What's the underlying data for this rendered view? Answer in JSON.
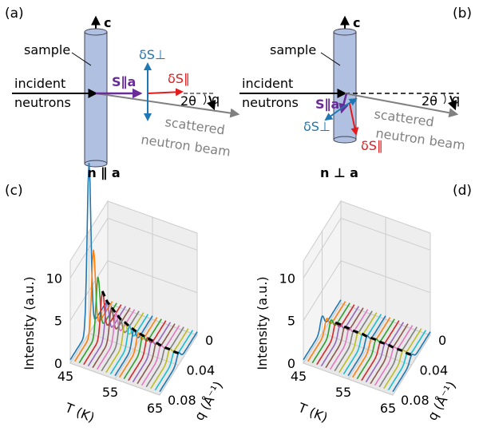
{
  "panel_labels": [
    "(a)",
    "(b)",
    "(c)",
    "(d)"
  ],
  "diagram_a": {
    "c_axis": "c",
    "sample": "sample",
    "incident": "incident",
    "neutrons": "neutrons",
    "spin": "S∥a",
    "dS_perp": "δS⊥",
    "dS_par": "δS∥",
    "two_theta": "2θ",
    "q": "q",
    "scattered": "scattered",
    "beam": "neutron beam"
  },
  "diagram_b": {
    "c_axis": "c",
    "sample": "sample",
    "incident": "incident",
    "neutrons": "neutrons",
    "spin": "S∥a",
    "dS_perp": "δS⊥",
    "dS_par": "δS∥",
    "two_theta": "2θ",
    "q": "q",
    "scattered": "scattered",
    "beam": "neutron beam"
  },
  "plots": [
    {
      "title": "n ∥ a",
      "zlabel": "Intensity (a.u.)",
      "xlabel": "T (K)",
      "ylabel": "q (Å⁻¹)",
      "zlim": [
        0,
        12
      ],
      "zticks": [
        0,
        5,
        10
      ],
      "xlim": [
        45,
        65
      ],
      "xticks": [
        45,
        55,
        65
      ],
      "ylim": [
        0,
        0.08
      ],
      "yticks": [
        0,
        0.04,
        0.08
      ],
      "temperatures": [
        45,
        46,
        47,
        48,
        49,
        50,
        51,
        52,
        53,
        54,
        55,
        56,
        57,
        58,
        59,
        60,
        61,
        62,
        63,
        64,
        65
      ],
      "peaks": [
        20,
        10,
        7,
        5.5,
        4.5,
        4,
        3.5,
        3,
        2.8,
        2.5,
        2.3,
        2.1,
        2,
        1.9,
        1.8,
        1.7,
        1.6,
        1.5,
        1.5,
        1.4,
        1.4
      ]
    },
    {
      "title": "n ⊥ a",
      "zlabel": "Intensity (a.u.)",
      "xlabel": "T (K)",
      "ylabel": "q (Å⁻¹)",
      "zlim": [
        0,
        12
      ],
      "zticks": [
        0,
        5,
        10
      ],
      "xlim": [
        45,
        65
      ],
      "xticks": [
        45,
        55,
        65
      ],
      "ylim": [
        0,
        0.08
      ],
      "yticks": [
        0,
        0.04,
        0.08
      ],
      "temperatures": [
        45,
        46,
        47,
        48,
        49,
        50,
        51,
        52,
        53,
        54,
        55,
        56,
        57,
        58,
        59,
        60,
        61,
        62,
        63,
        64,
        65
      ],
      "peaks": [
        2,
        1.9,
        1.9,
        1.8,
        1.8,
        1.7,
        1.7,
        1.6,
        1.6,
        1.6,
        1.5,
        1.5,
        1.5,
        1.4,
        1.4,
        1.4,
        1.3,
        1.3,
        1.3,
        1.2,
        1.2
      ]
    }
  ],
  "colors": [
    "#1f77b4",
    "#ff7f0e",
    "#2ca02c",
    "#d62728",
    "#9467bd",
    "#8c564b",
    "#e377c2",
    "#7f7f7f",
    "#bcbd22",
    "#17becf"
  ]
}
